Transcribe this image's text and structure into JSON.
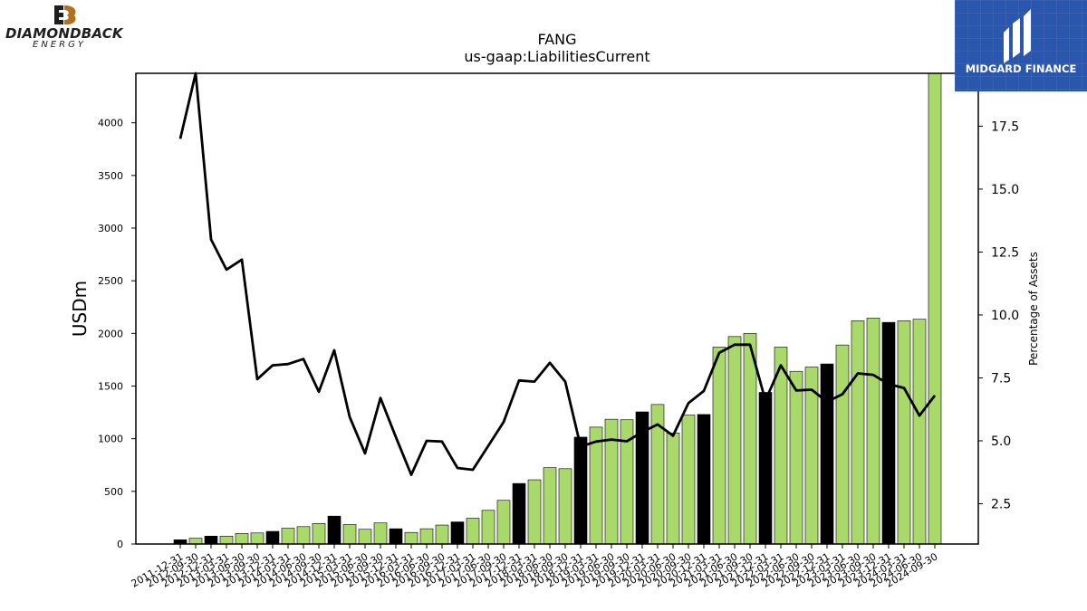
{
  "title": "FANG",
  "subtitle": "us-gaap:LiabilitiesCurrent",
  "logos": {
    "left": {
      "name": "DIAMONDBACK",
      "sub": "ENERGY"
    },
    "right": {
      "name": "MIDGARD FINANCE"
    }
  },
  "colors": {
    "bar_default": "#a8d96a",
    "bar_annual": "#000000",
    "line": "#000000"
  },
  "chart_data": {
    "type": "bar",
    "ylabel": "USDm",
    "y2label": "Percentage of Assets",
    "ylim": [
      0,
      4470
    ],
    "y2lim": [
      0.9,
      19.6
    ],
    "yticks": [
      0,
      500,
      1000,
      1500,
      2000,
      2500,
      3000,
      3500,
      4000
    ],
    "y2ticks": [
      "2.5",
      "5.0",
      "7.5",
      "10.0",
      "12.5",
      "15.0",
      "17.5"
    ],
    "categories": [
      "2011-12-31",
      "2012-09-30",
      "2012-12-31",
      "2013-03-31",
      "2013-06-30",
      "2013-09-30",
      "2013-12-31",
      "2014-03-31",
      "2014-06-30",
      "2014-09-30",
      "2014-12-31",
      "2015-03-31",
      "2015-06-30",
      "2015-09-30",
      "2015-12-31",
      "2016-03-31",
      "2016-06-30",
      "2016-09-30",
      "2016-12-31",
      "2017-03-31",
      "2017-06-30",
      "2017-09-30",
      "2017-12-31",
      "2018-03-31",
      "2018-06-30",
      "2018-09-30",
      "2018-12-31",
      "2019-03-31",
      "2019-06-30",
      "2019-09-30",
      "2019-12-31",
      "2020-03-31",
      "2020-06-30",
      "2020-09-30",
      "2020-12-31",
      "2021-03-31",
      "2021-06-30",
      "2021-09-30",
      "2021-12-31",
      "2022-03-31",
      "2022-06-30",
      "2022-09-30",
      "2022-12-31",
      "2023-03-31",
      "2023-06-30",
      "2023-09-30",
      "2023-12-31",
      "2024-03-31",
      "2024-06-30",
      "2024-09-30"
    ],
    "series": [
      {
        "kind": "bar",
        "values": [
          40,
          55,
          75,
          75,
          100,
          105,
          120,
          150,
          165,
          195,
          265,
          185,
          140,
          200,
          145,
          110,
          145,
          180,
          210,
          245,
          320,
          415,
          575,
          610,
          725,
          715,
          1015,
          1110,
          1185,
          1180,
          1255,
          1325,
          1055,
          1225,
          1230,
          1870,
          1970,
          2000,
          1440,
          1870,
          1640,
          1680,
          1710,
          1890,
          2120,
          2145,
          2105,
          2120,
          2135,
          4470
        ],
        "annual": [
          true,
          false,
          true,
          false,
          false,
          false,
          true,
          false,
          false,
          false,
          true,
          false,
          false,
          false,
          true,
          false,
          false,
          false,
          true,
          false,
          false,
          false,
          true,
          false,
          false,
          false,
          true,
          false,
          false,
          false,
          true,
          false,
          false,
          false,
          true,
          false,
          false,
          false,
          true,
          false,
          false,
          false,
          true,
          false,
          false,
          false,
          true,
          false,
          false,
          false
        ]
      },
      {
        "kind": "line",
        "axis": "right",
        "values": [
          17.0,
          19.6,
          13.0,
          11.8,
          12.2,
          7.45,
          8.0,
          8.05,
          8.25,
          6.95,
          8.6,
          5.95,
          4.5,
          6.7,
          5.15,
          3.65,
          5.0,
          4.97,
          3.92,
          3.85,
          4.8,
          5.75,
          7.4,
          7.35,
          8.1,
          7.35,
          4.77,
          4.97,
          5.05,
          4.98,
          5.35,
          5.65,
          5.2,
          6.5,
          6.98,
          8.5,
          8.82,
          8.82,
          6.6,
          8.0,
          7.0,
          7.03,
          6.55,
          6.85,
          7.68,
          7.62,
          7.25,
          7.1,
          6.0,
          6.8
        ]
      }
    ]
  }
}
